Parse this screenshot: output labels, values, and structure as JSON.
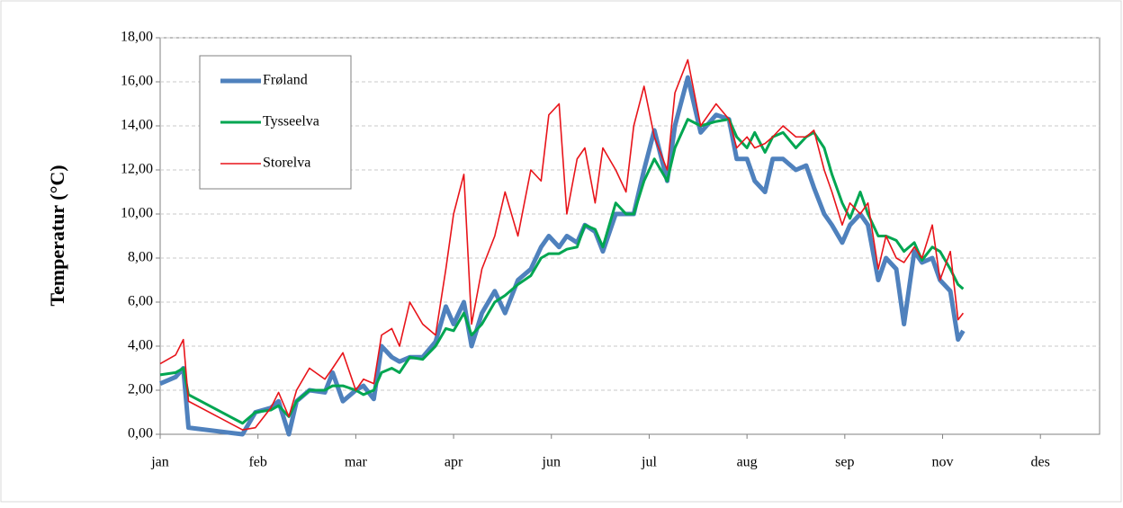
{
  "chart_data": {
    "type": "line",
    "y_label": "Temperatur (°C)",
    "x": [
      0,
      6,
      9,
      11,
      32,
      37,
      43,
      46,
      50,
      53,
      58,
      64,
      67,
      71,
      76,
      79,
      83,
      86,
      90,
      93,
      97,
      102,
      107,
      111,
      114,
      118,
      121,
      125,
      130,
      134,
      139,
      144,
      148,
      151,
      155,
      158,
      162,
      165,
      169,
      172,
      177,
      181,
      184,
      188,
      192,
      197,
      200,
      205,
      210,
      216,
      221,
      224,
      228,
      231,
      235,
      238,
      242,
      247,
      251,
      254,
      258,
      261,
      265,
      268,
      272,
      275,
      279,
      282,
      286,
      289,
      293,
      296,
      300,
      303,
      307,
      310,
      312
    ],
    "series": [
      {
        "name": "Frøland",
        "color": "#4f81bd",
        "width": 5,
        "values": [
          2.3,
          2.6,
          3.0,
          0.3,
          0,
          1.0,
          1.2,
          1.5,
          0,
          1.5,
          2.0,
          1.9,
          2.8,
          1.5,
          2.0,
          2.2,
          1.6,
          4.0,
          3.5,
          3.3,
          3.5,
          3.5,
          4.2,
          5.8,
          5.0,
          6.0,
          4.0,
          5.5,
          6.5,
          5.5,
          7.0,
          7.5,
          8.5,
          9.0,
          8.5,
          9.0,
          8.7,
          9.5,
          9.2,
          8.3,
          10.0,
          10.0,
          10.0,
          12.0,
          13.8,
          11.5,
          14.0,
          16.2,
          13.7,
          14.5,
          14.3,
          12.5,
          12.5,
          11.5,
          11.0,
          12.5,
          12.5,
          12.0,
          12.2,
          11.2,
          10.0,
          9.5,
          8.7,
          9.5,
          10.0,
          9.5,
          7.0,
          8.0,
          7.5,
          5.0,
          8.3,
          7.8,
          8.0,
          7.0,
          6.5,
          4.3,
          4.7
        ]
      },
      {
        "name": "Tysseelva",
        "color": "#00a651",
        "width": 3,
        "values": [
          2.7,
          2.8,
          3.0,
          1.8,
          0.5,
          1.0,
          1.1,
          1.3,
          0.8,
          1.5,
          2.0,
          2.0,
          2.2,
          2.2,
          2.0,
          1.8,
          2.0,
          2.8,
          3.0,
          2.8,
          3.5,
          3.4,
          4.0,
          4.8,
          4.7,
          5.5,
          4.5,
          5.0,
          6.0,
          6.3,
          6.8,
          7.2,
          8.0,
          8.2,
          8.2,
          8.4,
          8.5,
          9.5,
          9.3,
          8.5,
          10.5,
          10.0,
          10.0,
          11.5,
          12.5,
          11.5,
          13.0,
          14.3,
          14.0,
          14.2,
          14.3,
          13.5,
          13.0,
          13.7,
          12.8,
          13.5,
          13.7,
          13.0,
          13.5,
          13.7,
          13.0,
          11.8,
          10.5,
          9.8,
          11.0,
          10.0,
          9.0,
          9.0,
          8.8,
          8.3,
          8.7,
          7.9,
          8.5,
          8.3,
          7.5,
          6.8,
          6.6
        ]
      },
      {
        "name": "Storelva",
        "color": "#e8141a",
        "width": 1.6,
        "values": [
          3.2,
          3.6,
          4.3,
          1.5,
          0.2,
          0.3,
          1.2,
          1.9,
          0.8,
          2.0,
          3.0,
          2.5,
          3.0,
          3.7,
          2.0,
          2.5,
          2.3,
          4.5,
          4.8,
          4.0,
          6.0,
          5.0,
          4.5,
          7.5,
          10.0,
          11.8,
          5.0,
          7.5,
          9.0,
          11.0,
          9.0,
          12.0,
          11.5,
          14.5,
          15.0,
          10.0,
          12.5,
          13.0,
          10.5,
          13.0,
          12.0,
          11.0,
          14.0,
          15.8,
          13.5,
          12.0,
          15.5,
          17.0,
          14.0,
          15.0,
          14.3,
          13.0,
          13.5,
          13.0,
          13.2,
          13.5,
          14.0,
          13.5,
          13.5,
          13.8,
          12.0,
          11.0,
          9.5,
          10.5,
          10.0,
          10.5,
          7.5,
          9.0,
          8.0,
          7.8,
          8.5,
          8.0,
          9.5,
          7.0,
          8.3,
          5.2,
          5.5
        ]
      }
    ],
    "xlim": [
      0,
      365
    ],
    "xticks": [
      {
        "value": 0,
        "label": "jan"
      },
      {
        "value": 38,
        "label": "feb"
      },
      {
        "value": 76,
        "label": "mar"
      },
      {
        "value": 114,
        "label": "apr"
      },
      {
        "value": 152,
        "label": "jun"
      },
      {
        "value": 190,
        "label": "jul"
      },
      {
        "value": 228,
        "label": "aug"
      },
      {
        "value": 266,
        "label": "sep"
      },
      {
        "value": 304,
        "label": "nov"
      },
      {
        "value": 342,
        "label": "des"
      }
    ],
    "ylim": [
      0,
      18
    ],
    "yticks": [
      {
        "value": 0,
        "label": "0,00"
      },
      {
        "value": 2,
        "label": "2,00"
      },
      {
        "value": 4,
        "label": "4,00"
      },
      {
        "value": 6,
        "label": "6,00"
      },
      {
        "value": 8,
        "label": "8,00"
      },
      {
        "value": 10,
        "label": "10,00"
      },
      {
        "value": 12,
        "label": "12,00"
      },
      {
        "value": 14,
        "label": "14,00"
      },
      {
        "value": 16,
        "label": "16,00"
      },
      {
        "value": 18,
        "label": "18,00"
      }
    ],
    "grid": true,
    "legend": "upper-left"
  }
}
